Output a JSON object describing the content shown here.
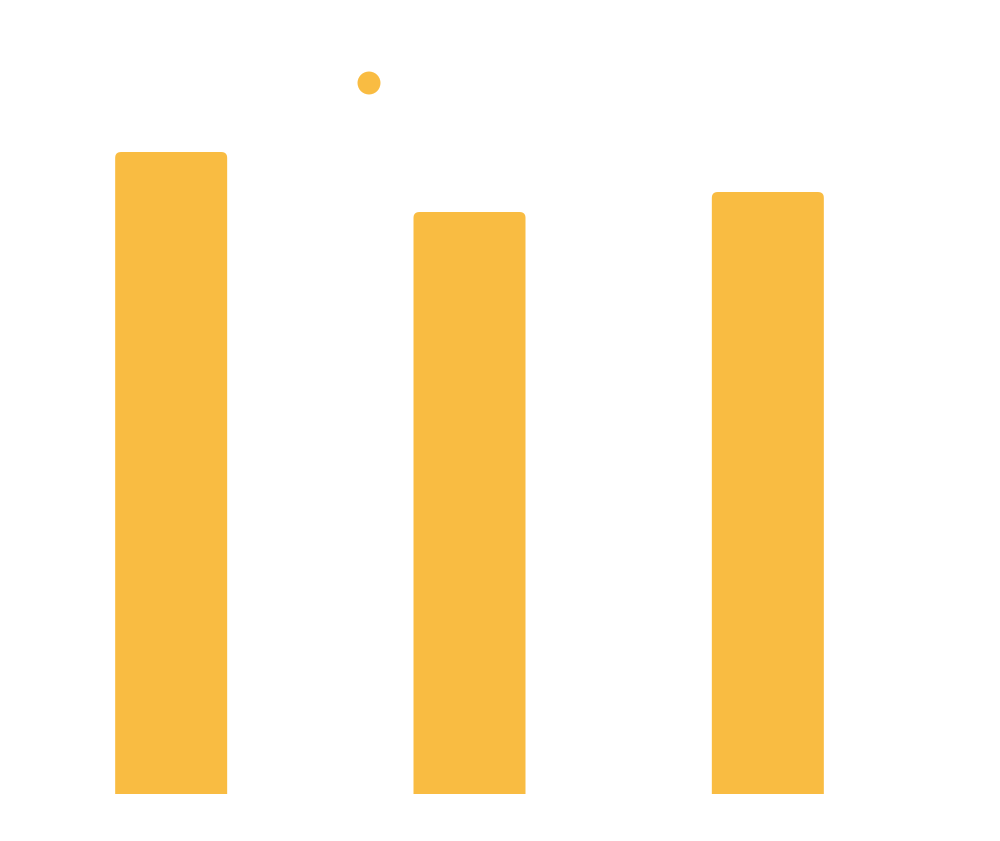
{
  "chart_data": {
    "type": "bar",
    "categories": [
      null,
      null,
      null
    ],
    "values": [
      642,
      582,
      602
    ],
    "color": "#f9bc42",
    "ylim": [
      0,
      700
    ],
    "legend": "top-left"
  }
}
